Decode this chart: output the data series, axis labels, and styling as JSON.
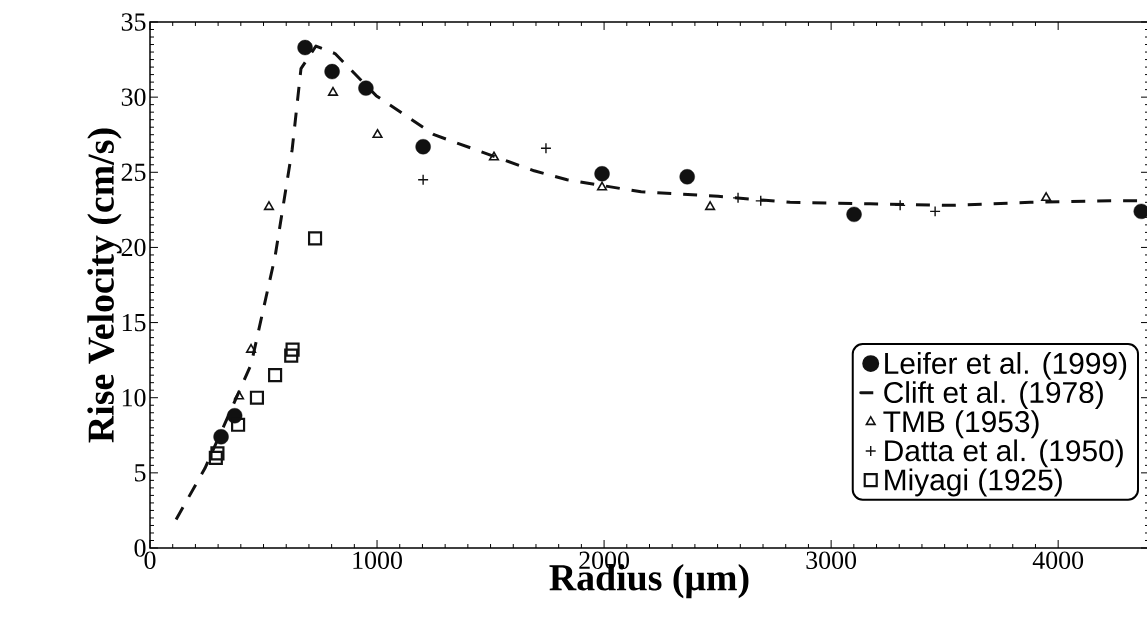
{
  "chart_data": {
    "type": "scatter",
    "xlabel": "Radius (μm)",
    "ylabel": "Rise Velocity (cm/s)",
    "xlim": [
      0,
      4400
    ],
    "ylim": [
      0,
      35
    ],
    "xticks": [
      0,
      1000,
      2000,
      3000,
      4000
    ],
    "yticks": [
      0,
      5,
      10,
      15,
      20,
      25,
      30,
      35
    ],
    "legend": "bottom right",
    "grid": false,
    "series": [
      {
        "name": "Leifer et al. (1999)",
        "color": "#111111",
        "marker": "circle",
        "x": [
          313,
          373,
          683,
          802,
          951,
          1203,
          1991,
          2366,
          3101,
          4366
        ],
        "values": [
          7.4,
          8.8,
          33.3,
          31.7,
          30.6,
          26.7,
          24.9,
          24.7,
          22.2,
          22.4
        ]
      },
      {
        "name": "Clift et al. (1978)",
        "color": "#111111",
        "type": "line",
        "line_style": "dashed",
        "marker": "none",
        "x": [
          115,
          242,
          445,
          551,
          626,
          665,
          731,
          815,
          996,
          1251,
          1692,
          1837,
          2163,
          2502,
          2819,
          3172,
          3537,
          3877,
          4229,
          4390
        ],
        "values": [
          1.9,
          5.3,
          12.2,
          19.4,
          26.5,
          31.9,
          33.4,
          32.9,
          30.1,
          27.5,
          25.1,
          24.5,
          23.7,
          23.4,
          23.0,
          22.9,
          22.8,
          23.0,
          23.1,
          23.1
        ]
      },
      {
        "name": "TMB (1953)",
        "color": "#111111",
        "marker": "triangle",
        "x": [
          392,
          445,
          524,
          806,
          1002,
          1515,
          1991,
          2467,
          3947
        ],
        "values": [
          10.1,
          13.2,
          22.7,
          30.3,
          27.5,
          26.0,
          24.0,
          22.7,
          23.3
        ]
      },
      {
        "name": "Datta et al. (1950)",
        "color": "#111111",
        "marker": "cross",
        "x": [
          1203,
          1744,
          2590,
          2690,
          3304,
          3458
        ],
        "values": [
          24.5,
          26.6,
          23.3,
          23.1,
          22.8,
          22.4
        ]
      },
      {
        "name": "Miyagi (1925)",
        "color": "#111111",
        "marker": "square",
        "x": [
          290,
          297,
          388,
          471,
          551,
          622,
          628,
          727
        ],
        "values": [
          6.0,
          6.3,
          8.2,
          10.0,
          11.5,
          12.8,
          13.2,
          20.6
        ]
      }
    ]
  }
}
